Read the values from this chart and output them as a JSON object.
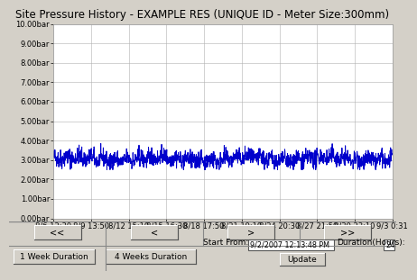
{
  "title": "Site Pressure History - EXAMPLE RES (UNIQUE ID - Meter Size:300mm)",
  "x_labels": [
    "8/6 12:30",
    "8/9 13:50",
    "8/12 15:10",
    "8/15 16:30",
    "8/18 17:50",
    "8/21 19:10",
    "8/24 20:30",
    "8/27 21:50",
    "8/30 23:10",
    "9/3 0:31"
  ],
  "y_ticks": [
    0.0,
    1.0,
    2.0,
    3.0,
    4.0,
    5.0,
    6.0,
    7.0,
    8.0,
    9.0,
    10.0
  ],
  "y_tick_labels": [
    "0.00bar",
    "1.00bar",
    "2.00bar",
    "3.00bar",
    "4.00bar",
    "5.00bar",
    "6.00bar",
    "7.00bar",
    "8.00bar",
    "9.00bar",
    "10.00bar"
  ],
  "ylim": [
    0.0,
    10.0
  ],
  "line_color": "#0000cc",
  "line_width": 0.7,
  "mean_pressure": 3.05,
  "noise_amplitude": 0.22,
  "bg_color": "#d4d0c8",
  "plot_bg_color": "#ffffff",
  "grid_color": "#b0b0b0",
  "title_fontsize": 8.5,
  "tick_fontsize": 6,
  "bottom_bg": "#d4d0c8",
  "btn1_text": "<<",
  "btn2_text": "<",
  "btn3_text": ">",
  "btn4_text": ">>",
  "week1_text": "1 Week Duration",
  "week4_text": "4 Weeks Duration",
  "update_text": "Update",
  "date_text": "9/2/2007 12:13:48 PM",
  "duration_val": "24"
}
